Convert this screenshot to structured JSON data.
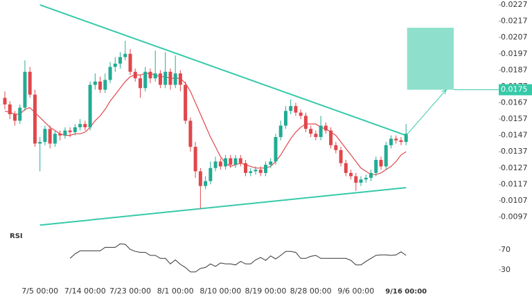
{
  "chart_data": {
    "type": "candlestick",
    "categories": [
      null,
      null,
      null,
      null,
      null,
      null,
      null,
      "7/5 00:00",
      null,
      null,
      null,
      null,
      null,
      null,
      null,
      null,
      "7/14 00:00",
      null,
      null,
      null,
      null,
      null,
      null,
      null,
      null,
      "7/23 00:00",
      null,
      null,
      null,
      null,
      null,
      null,
      null,
      null,
      "8/1 00:00",
      null,
      null,
      null,
      null,
      null,
      null,
      null,
      null,
      "8/10 00:00",
      null,
      null,
      null,
      null,
      null,
      null,
      null,
      null,
      "8/19 00:00",
      null,
      null,
      null,
      null,
      null,
      null,
      null,
      null,
      "8/28 00:00",
      null,
      null,
      null,
      null,
      null,
      null,
      null,
      null,
      "9/6 00:00",
      null,
      null,
      null,
      null,
      null,
      null,
      null,
      null,
      null,
      "9/16 00:00"
    ],
    "open": [
      0.017,
      0.0166,
      0.016,
      0.0156,
      0.0164,
      0.0186,
      0.0172,
      0.0142,
      0.0143,
      0.0151,
      0.0142,
      0.0148,
      0.0147,
      0.015,
      0.0149,
      0.0152,
      0.0154,
      0.0152,
      0.0178,
      0.018,
      0.0175,
      0.0181,
      0.0189,
      0.0191,
      0.0195,
      0.0197,
      0.0186,
      0.0182,
      0.0176,
      0.0186,
      0.0182,
      0.0185,
      0.0178,
      0.0186,
      0.0178,
      0.0185,
      0.0178,
      0.0156,
      0.014,
      0.0125,
      0.0116,
      0.0119,
      0.0127,
      0.0131,
      0.0128,
      0.0133,
      0.0129,
      0.0133,
      0.013,
      0.0124,
      0.0125,
      0.0126,
      0.0124,
      0.0129,
      0.0131,
      0.0146,
      0.0153,
      0.0162,
      0.0165,
      0.0161,
      0.0159,
      0.0151,
      0.0148,
      0.0146,
      0.0153,
      0.015,
      0.0141,
      0.0138,
      0.013,
      0.0124,
      0.0122,
      0.0118,
      0.012,
      0.0121,
      0.0124,
      0.0132,
      0.0128,
      0.0141,
      0.0145,
      0.0144,
      0.0143
    ],
    "high": [
      0.0174,
      0.0168,
      0.0162,
      0.0166,
      0.0193,
      0.0189,
      0.0175,
      0.0146,
      0.0153,
      0.0153,
      0.015,
      0.015,
      0.0152,
      0.0152,
      0.0154,
      0.0157,
      0.0156,
      0.018,
      0.0185,
      0.0183,
      0.0185,
      0.0192,
      0.0195,
      0.0198,
      0.0205,
      0.02,
      0.0188,
      0.0184,
      0.0189,
      0.0188,
      0.0199,
      0.0187,
      0.0198,
      0.0188,
      0.0196,
      0.0187,
      0.018,
      0.0158,
      0.0143,
      0.0127,
      0.0122,
      0.0131,
      0.0134,
      0.0133,
      0.0135,
      0.0135,
      0.0135,
      0.0135,
      0.0132,
      0.0127,
      0.0128,
      0.0128,
      0.0131,
      0.0133,
      0.0148,
      0.0156,
      0.0165,
      0.0169,
      0.0167,
      0.0163,
      0.0161,
      0.0153,
      0.015,
      0.0159,
      0.0155,
      0.0152,
      0.0143,
      0.014,
      0.0132,
      0.0126,
      0.0124,
      0.0122,
      0.0123,
      0.0126,
      0.0134,
      0.0134,
      0.0143,
      0.0147,
      0.0147,
      0.0146,
      0.0154
    ],
    "low": [
      0.0163,
      0.0157,
      0.0153,
      0.0154,
      0.0162,
      0.017,
      0.014,
      0.0125,
      0.0141,
      0.0139,
      0.014,
      0.0144,
      0.0145,
      0.0146,
      0.0147,
      0.015,
      0.015,
      0.015,
      0.0175,
      0.0173,
      0.0173,
      0.0179,
      0.0186,
      0.0188,
      0.0193,
      0.0184,
      0.018,
      0.017,
      0.0174,
      0.0179,
      0.018,
      0.0176,
      0.0176,
      0.0175,
      0.0176,
      0.0174,
      0.0154,
      0.0137,
      0.0121,
      0.0102,
      0.0114,
      0.0117,
      0.0125,
      0.0126,
      0.0126,
      0.0127,
      0.0127,
      0.0128,
      0.0122,
      0.0122,
      0.0123,
      0.0122,
      0.0122,
      0.0127,
      0.0129,
      0.0144,
      0.0151,
      0.016,
      0.0159,
      0.0157,
      0.0149,
      0.0146,
      0.0144,
      0.0144,
      0.0148,
      0.0139,
      0.0136,
      0.0128,
      0.0122,
      0.012,
      0.0113,
      0.0116,
      0.0118,
      0.0119,
      0.0122,
      0.0126,
      0.0126,
      0.0139,
      0.0142,
      0.0141,
      0.0141
    ],
    "close": [
      0.0166,
      0.016,
      0.0156,
      0.0164,
      0.0186,
      0.0172,
      0.0142,
      0.0143,
      0.0151,
      0.0142,
      0.0148,
      0.0147,
      0.015,
      0.0149,
      0.0152,
      0.0154,
      0.0152,
      0.0178,
      0.018,
      0.0175,
      0.0181,
      0.0189,
      0.0191,
      0.0195,
      0.0197,
      0.0186,
      0.0182,
      0.0176,
      0.0186,
      0.0182,
      0.0185,
      0.0178,
      0.0186,
      0.0178,
      0.0185,
      0.0178,
      0.0156,
      0.014,
      0.0125,
      0.0116,
      0.0119,
      0.0127,
      0.0131,
      0.0128,
      0.0133,
      0.0129,
      0.0133,
      0.013,
      0.0124,
      0.0125,
      0.0126,
      0.0124,
      0.0129,
      0.0131,
      0.0146,
      0.0153,
      0.0162,
      0.0165,
      0.0161,
      0.0159,
      0.0151,
      0.0148,
      0.0146,
      0.0153,
      0.015,
      0.0141,
      0.0138,
      0.013,
      0.0124,
      0.0122,
      0.0118,
      0.012,
      0.0121,
      0.0124,
      0.0132,
      0.0128,
      0.0141,
      0.0145,
      0.0144,
      0.0143,
      0.0148
    ],
    "up_color": "#22ab94",
    "down_color": "#e0474c",
    "ma": {
      "color": "#e0474c",
      "values": [
        0.0162,
        0.0161,
        0.016,
        0.016,
        0.0163,
        0.0164,
        0.0161,
        0.0158,
        0.0155,
        0.0152,
        0.015,
        0.0148,
        0.0147,
        0.0147,
        0.0148,
        0.0148,
        0.0149,
        0.0152,
        0.0156,
        0.0159,
        0.0163,
        0.0168,
        0.0172,
        0.0176,
        0.018,
        0.0183,
        0.0184,
        0.0184,
        0.0185,
        0.0185,
        0.0184,
        0.0183,
        0.0183,
        0.0182,
        0.0182,
        0.0182,
        0.0179,
        0.0174,
        0.0167,
        0.016,
        0.0153,
        0.0146,
        0.014,
        0.0134,
        0.013,
        0.0128,
        0.0129,
        0.013,
        0.0129,
        0.0128,
        0.0127,
        0.0127,
        0.0127,
        0.0128,
        0.0131,
        0.0135,
        0.014,
        0.0145,
        0.0149,
        0.0152,
        0.0154,
        0.0154,
        0.0154,
        0.0152,
        0.0151,
        0.0149,
        0.0147,
        0.0143,
        0.0139,
        0.0135,
        0.0131,
        0.0127,
        0.0125,
        0.0123,
        0.0123,
        0.0124,
        0.0126,
        0.0128,
        0.0131,
        0.0135,
        0.0137
      ]
    },
    "ylim": [
      0.009,
      0.023
    ],
    "yticks": [
      0.0227,
      0.0217,
      0.0207,
      0.0197,
      0.0187,
      0.0177,
      0.0167,
      0.0157,
      0.0147,
      0.0137,
      0.0127,
      0.0117,
      0.0107,
      0.0097
    ],
    "last_price": 0.0175,
    "trendlines": {
      "color": "#35c9a8",
      "lines": [
        {
          "x": [
            7,
            80
          ],
          "y": [
            0.0227,
            0.0147
          ]
        },
        {
          "x": [
            7,
            80
          ],
          "y": [
            0.0092,
            0.0115
          ]
        }
      ]
    },
    "target": {
      "color": "#8ee0cc",
      "x": [
        80.2,
        89.5
      ],
      "y": [
        0.0175,
        0.0213
      ]
    },
    "arrow": {
      "x": [
        80,
        88
      ],
      "y": [
        0.0147,
        0.0175
      ]
    },
    "rsi": {
      "label": "RSI",
      "color": "#333333",
      "ylim": [
        0,
        100
      ],
      "yticks": [
        70,
        30
      ],
      "values": [
        null,
        null,
        null,
        null,
        null,
        null,
        null,
        null,
        null,
        null,
        null,
        null,
        null,
        53,
        62,
        68,
        68,
        68,
        68,
        68,
        75,
        75,
        75,
        82,
        81,
        71,
        67,
        65,
        65,
        59,
        59,
        53,
        53,
        42,
        50,
        41,
        35,
        26,
        26,
        33,
        35,
        42,
        37,
        44,
        42,
        42,
        40,
        47,
        42,
        42,
        50,
        55,
        49,
        58,
        52,
        59,
        67,
        67,
        65,
        53,
        53,
        57,
        59,
        53,
        53,
        53,
        53,
        53,
        53,
        49,
        40,
        40,
        47,
        53,
        59,
        60,
        60,
        59,
        60,
        66,
        59
      ]
    }
  }
}
